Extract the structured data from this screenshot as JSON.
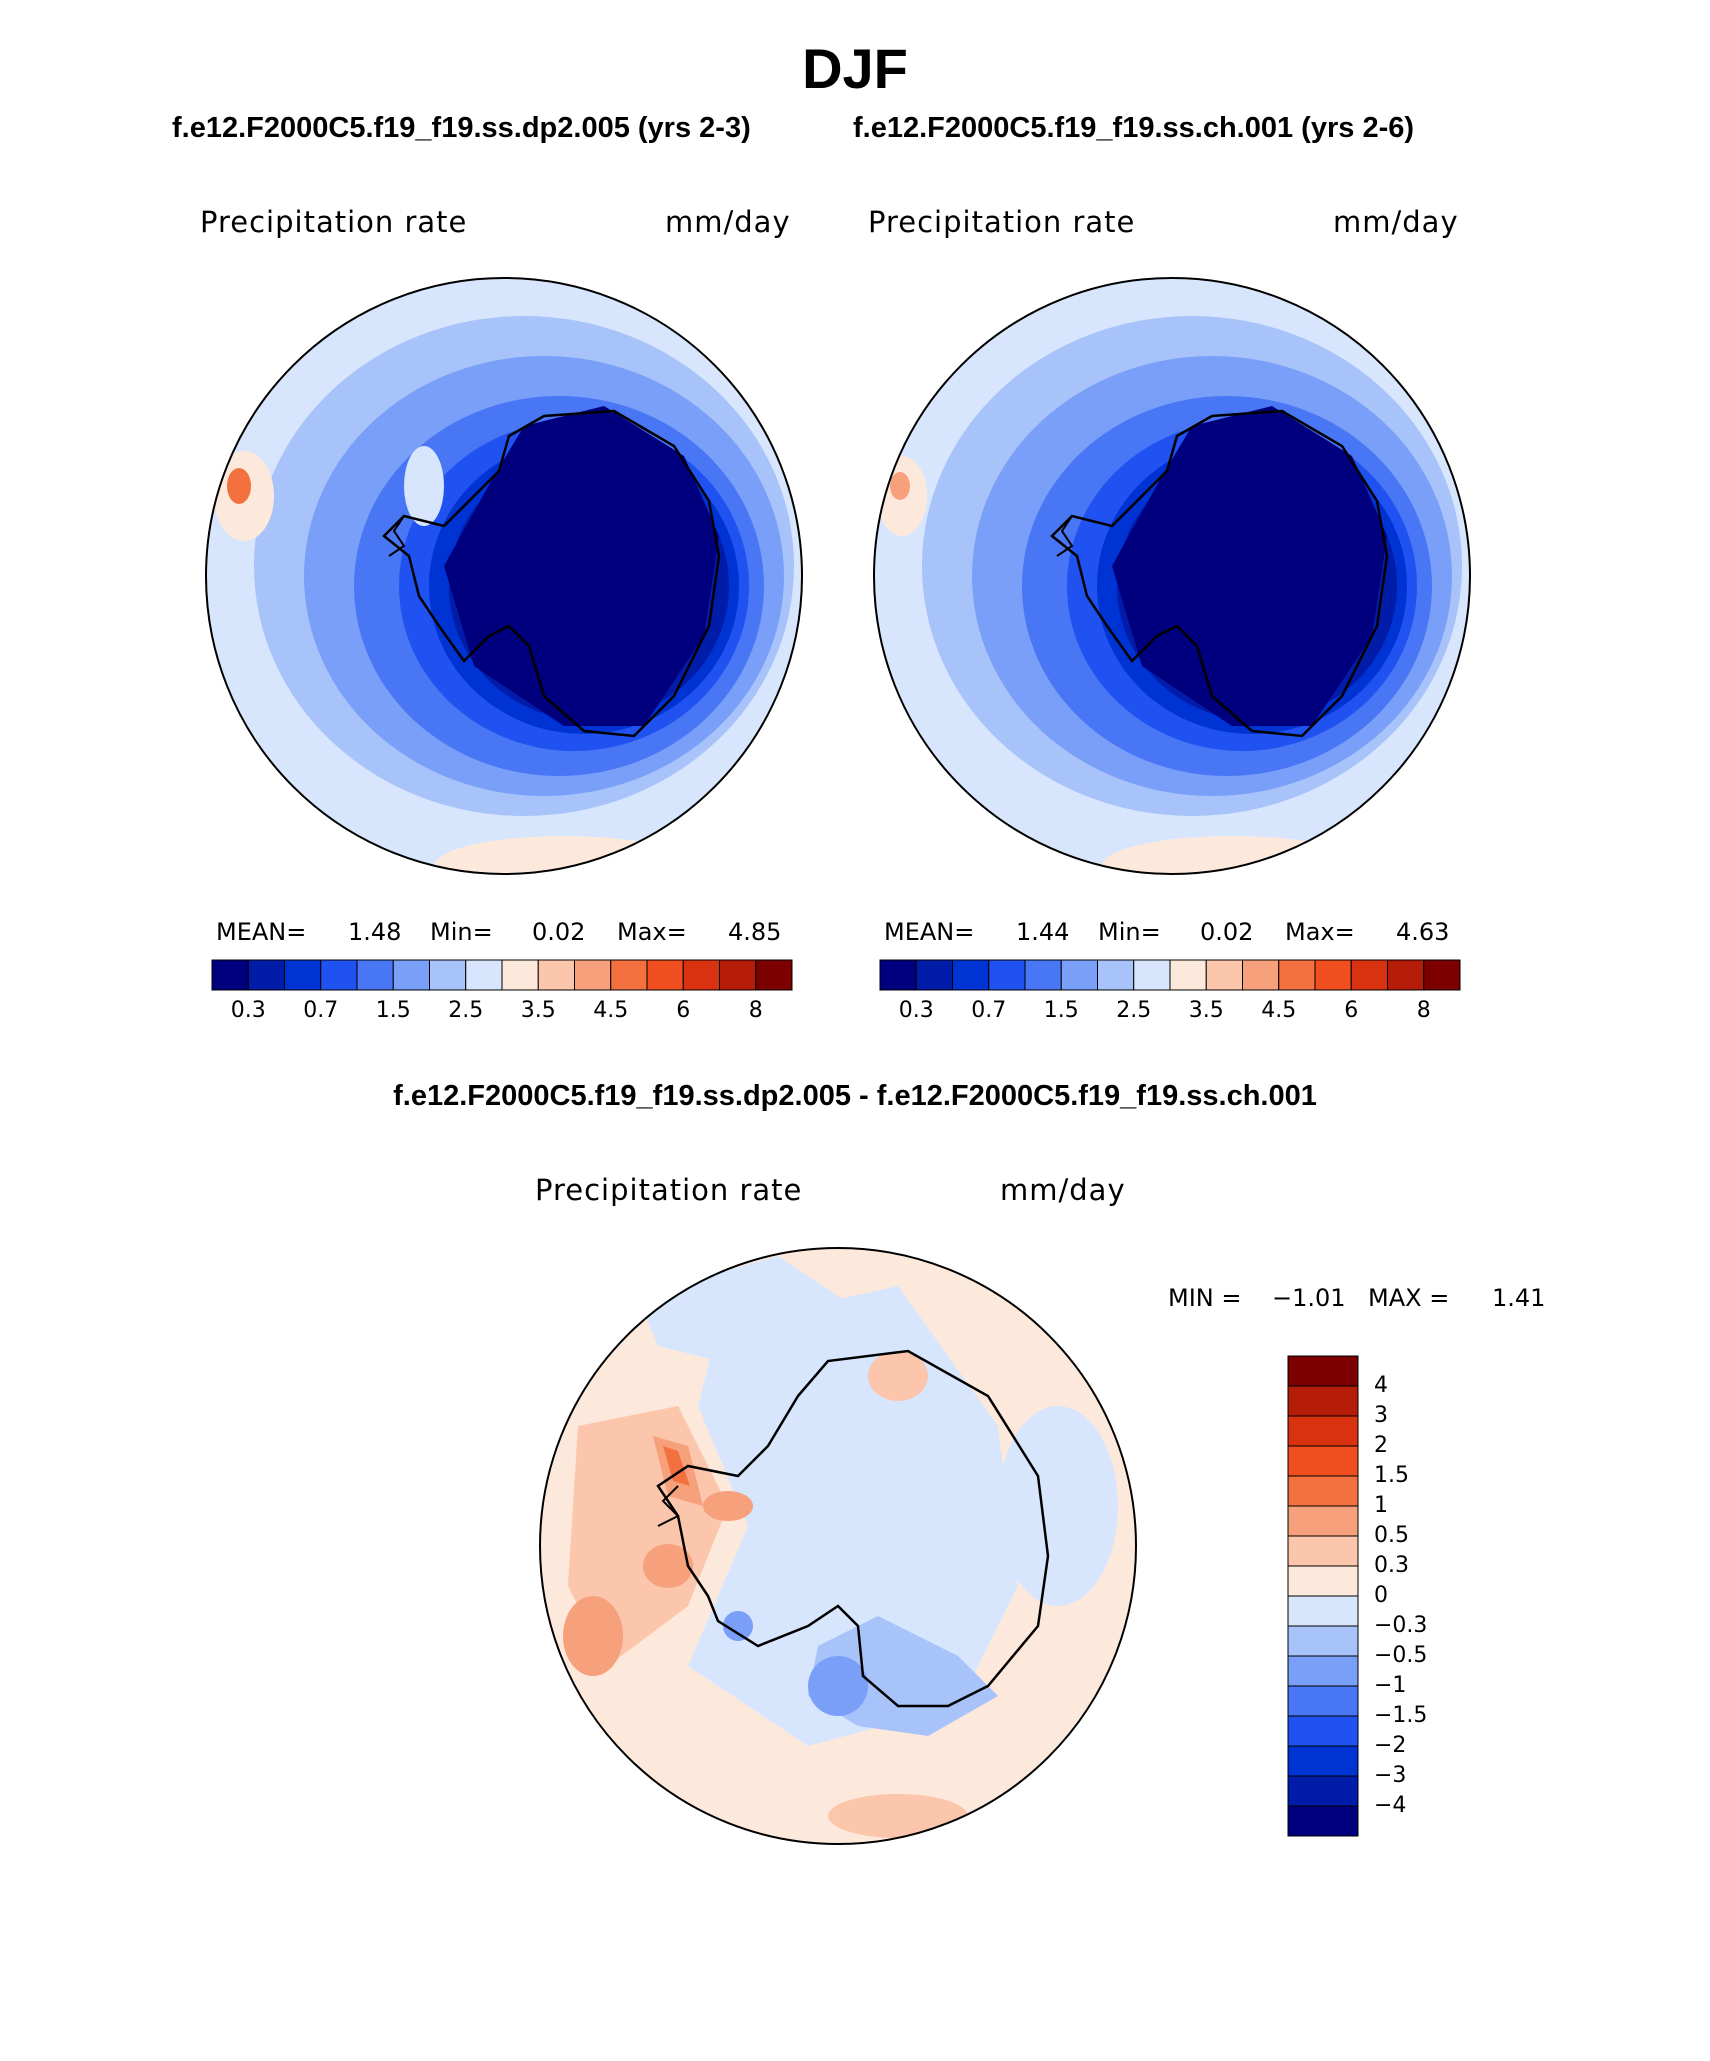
{
  "figure": {
    "title": "DJF",
    "case1_label": "f.e12.F2000C5.f19_f19.ss.dp2.005 (yrs 2-3)",
    "case2_label": "f.e12.F2000C5.f19_f19.ss.ch.001 (yrs 2-6)",
    "diff_label": "f.e12.F2000C5.f19_f19.ss.dp2.005 - f.e12.F2000C5.f19_f19.ss.ch.001"
  },
  "colors": {
    "background": "#ffffff",
    "coastline": "#000000",
    "main_scale": [
      "#00007f",
      "#001ca8",
      "#0033d4",
      "#1f52f0",
      "#4876f5",
      "#7a9ff8",
      "#a8c2fa",
      "#d7e6fc",
      "#fde9dc",
      "#fbc6ab",
      "#f7a07c",
      "#f3713f",
      "#f04e1e",
      "#d93210",
      "#b51d08",
      "#7d0000"
    ],
    "diff_scale": [
      "#00007f",
      "#001ca8",
      "#0033d4",
      "#1f52f0",
      "#4876f5",
      "#7a9ff8",
      "#a8c2fa",
      "#d7e6fc",
      "#fde9dc",
      "#fbc6ab",
      "#f7a07c",
      "#f3713f",
      "#f04e1e",
      "#d93210",
      "#b51d08",
      "#7d0000"
    ]
  },
  "panels": [
    {
      "variable": "Precipitation rate",
      "units": "mm/day",
      "mean_label": "MEAN=",
      "mean": "1.48",
      "min_label": "Min=",
      "min": "0.02",
      "max_label": "Max=",
      "max": "4.85"
    },
    {
      "variable": "Precipitation rate",
      "units": "mm/day",
      "mean_label": "MEAN=",
      "mean": "1.44",
      "min_label": "Min=",
      "min": "0.02",
      "max_label": "Max=",
      "max": "4.63"
    }
  ],
  "main_colorbar": {
    "tick_labels": [
      "0.3",
      "0.7",
      "1.5",
      "2.5",
      "3.5",
      "4.5",
      "6",
      "8"
    ]
  },
  "diff_panel": {
    "variable": "Precipitation rate",
    "units": "mm/day",
    "min_label": "MIN =",
    "min": "−1.01",
    "max_label": "MAX =",
    "max": "1.41",
    "tick_labels": [
      "4",
      "3",
      "2",
      "1.5",
      "1",
      "0.5",
      "0.3",
      "0",
      "−0.3",
      "−0.5",
      "−1",
      "−1.5",
      "−2",
      "−3",
      "−4"
    ]
  }
}
